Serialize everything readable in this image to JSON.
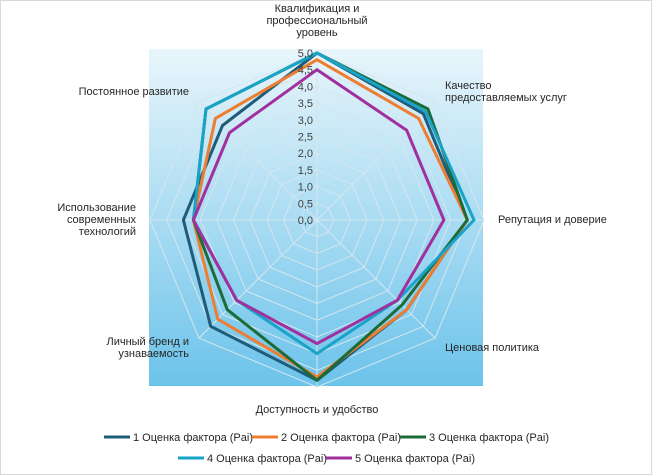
{
  "chart_data": {
    "type": "radar",
    "title": "",
    "axes": [
      [
        "Квалификация и",
        "профессиональный",
        "уровень"
      ],
      [
        "Качество",
        "предоставляемых услуг"
      ],
      [
        "Репутация и доверие"
      ],
      [
        "Ценовая политика"
      ],
      [
        "Доступность и удобство"
      ],
      [
        "Личный бренд и",
        "узнаваемость"
      ],
      [
        "Использование",
        "современных",
        "технологий"
      ],
      [
        "Постоянное развитие"
      ]
    ],
    "ticks": [
      "0,0",
      "0,5",
      "1,0",
      "1,5",
      "2,0",
      "2,5",
      "3,0",
      "3,5",
      "4,0",
      "4,5",
      "5,0"
    ],
    "rmin": 0,
    "rmax": 5,
    "grid": true,
    "legend_position": "bottom",
    "series": [
      {
        "name": "1 Оценка фактора (Pai)",
        "color": "#1f5c7a",
        "values": [
          5.0,
          4.5,
          4.5,
          3.8,
          4.8,
          4.5,
          4.0,
          4.0
        ]
      },
      {
        "name": "2 Оценка фактора (Pai)",
        "color": "#ed7d31",
        "values": [
          4.8,
          4.3,
          4.5,
          3.8,
          4.7,
          4.2,
          3.7,
          4.3
        ]
      },
      {
        "name": "3 Оценка фактора (Pai)",
        "color": "#1e6b3a",
        "values": [
          5.0,
          4.7,
          4.5,
          3.6,
          4.8,
          3.8,
          3.7,
          4.7
        ]
      },
      {
        "name": "4 Оценка фактора (Pai)",
        "color": "#1aa3c9",
        "values": [
          5.0,
          4.6,
          4.7,
          3.4,
          4.0,
          3.4,
          3.7,
          4.7
        ]
      },
      {
        "name": "5 Оценка фактора (Pai)",
        "color": "#a1309e",
        "values": [
          4.5,
          3.8,
          3.8,
          3.4,
          3.7,
          3.4,
          3.7,
          3.7
        ]
      }
    ]
  }
}
